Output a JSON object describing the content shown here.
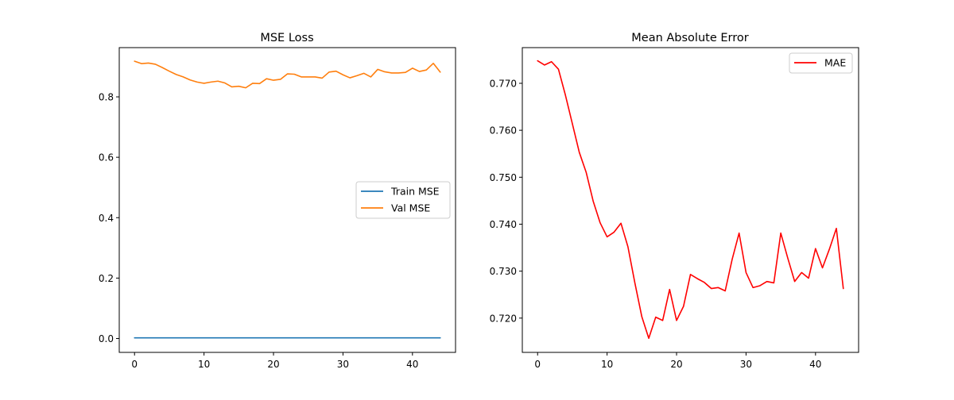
{
  "chart_data": [
    {
      "type": "line",
      "title": "MSE Loss",
      "xlabel": "",
      "ylabel": "",
      "xlim": [
        -2.2,
        46.2
      ],
      "ylim": [
        -0.046,
        0.963
      ],
      "xticks": [
        0,
        10,
        20,
        30,
        40
      ],
      "yticks": [
        0.0,
        0.2,
        0.4,
        0.6,
        0.8
      ],
      "ytick_labels": [
        "0.0",
        "0.2",
        "0.4",
        "0.6",
        "0.8"
      ],
      "grid": false,
      "legend_position": "center-right",
      "series": [
        {
          "name": "Train MSE",
          "color": "#1f77b4",
          "x": [
            0,
            1,
            2,
            3,
            4,
            5,
            6,
            7,
            8,
            9,
            10,
            11,
            12,
            13,
            14,
            15,
            16,
            17,
            18,
            19,
            20,
            21,
            22,
            23,
            24,
            25,
            26,
            27,
            28,
            29,
            30,
            31,
            32,
            33,
            34,
            35,
            36,
            37,
            38,
            39,
            40,
            41,
            42,
            43,
            44
          ],
          "y": [
            0.002,
            0.002,
            0.002,
            0.002,
            0.002,
            0.002,
            0.002,
            0.002,
            0.002,
            0.002,
            0.002,
            0.002,
            0.002,
            0.002,
            0.002,
            0.002,
            0.002,
            0.002,
            0.002,
            0.002,
            0.002,
            0.002,
            0.002,
            0.002,
            0.002,
            0.002,
            0.002,
            0.002,
            0.002,
            0.002,
            0.002,
            0.002,
            0.002,
            0.002,
            0.002,
            0.002,
            0.002,
            0.002,
            0.002,
            0.002,
            0.002,
            0.002,
            0.002,
            0.002,
            0.002
          ]
        },
        {
          "name": "Val MSE",
          "color": "#ff7f0e",
          "x": [
            0,
            1,
            2,
            3,
            4,
            5,
            6,
            7,
            8,
            9,
            10,
            11,
            12,
            13,
            14,
            15,
            16,
            17,
            18,
            19,
            20,
            21,
            22,
            23,
            24,
            25,
            26,
            27,
            28,
            29,
            30,
            31,
            32,
            33,
            34,
            35,
            36,
            37,
            38,
            39,
            40,
            41,
            42,
            43,
            44
          ],
          "y": [
            0.918,
            0.91,
            0.912,
            0.908,
            0.897,
            0.885,
            0.874,
            0.866,
            0.856,
            0.849,
            0.845,
            0.849,
            0.852,
            0.846,
            0.833,
            0.835,
            0.83,
            0.845,
            0.844,
            0.86,
            0.855,
            0.858,
            0.876,
            0.875,
            0.866,
            0.866,
            0.866,
            0.862,
            0.882,
            0.885,
            0.873,
            0.863,
            0.87,
            0.878,
            0.866,
            0.891,
            0.883,
            0.879,
            0.879,
            0.881,
            0.895,
            0.884,
            0.889,
            0.911,
            0.882
          ]
        }
      ]
    },
    {
      "type": "line",
      "title": "Mean Absolute Error",
      "xlabel": "",
      "ylabel": "",
      "xlim": [
        -2.2,
        46.2
      ],
      "ylim": [
        0.7127,
        0.7776
      ],
      "xticks": [
        0,
        10,
        20,
        30,
        40
      ],
      "yticks": [
        0.72,
        0.73,
        0.74,
        0.75,
        0.76,
        0.77
      ],
      "ytick_labels": [
        "0.720",
        "0.730",
        "0.740",
        "0.750",
        "0.760",
        "0.770"
      ],
      "grid": false,
      "legend_position": "top-right",
      "series": [
        {
          "name": "MAE",
          "color": "#ff0000",
          "x": [
            0,
            1,
            2,
            3,
            4,
            5,
            6,
            7,
            8,
            9,
            10,
            11,
            12,
            13,
            14,
            15,
            16,
            17,
            18,
            19,
            20,
            21,
            22,
            23,
            24,
            25,
            26,
            27,
            28,
            29,
            30,
            31,
            32,
            33,
            34,
            35,
            36,
            37,
            38,
            39,
            40,
            41,
            42,
            43,
            44
          ],
          "y": [
            0.7748,
            0.7739,
            0.7746,
            0.773,
            0.7675,
            0.7614,
            0.7553,
            0.751,
            0.7449,
            0.7403,
            0.7373,
            0.7383,
            0.7402,
            0.7352,
            0.7275,
            0.7203,
            0.7157,
            0.7202,
            0.7195,
            0.7261,
            0.7195,
            0.7225,
            0.7293,
            0.7284,
            0.7276,
            0.7263,
            0.7265,
            0.7258,
            0.7325,
            0.7381,
            0.7297,
            0.7265,
            0.7269,
            0.7278,
            0.7275,
            0.7381,
            0.7328,
            0.7278,
            0.7297,
            0.7285,
            0.7348,
            0.7307,
            0.7347,
            0.7391,
            0.7263
          ]
        }
      ]
    }
  ]
}
